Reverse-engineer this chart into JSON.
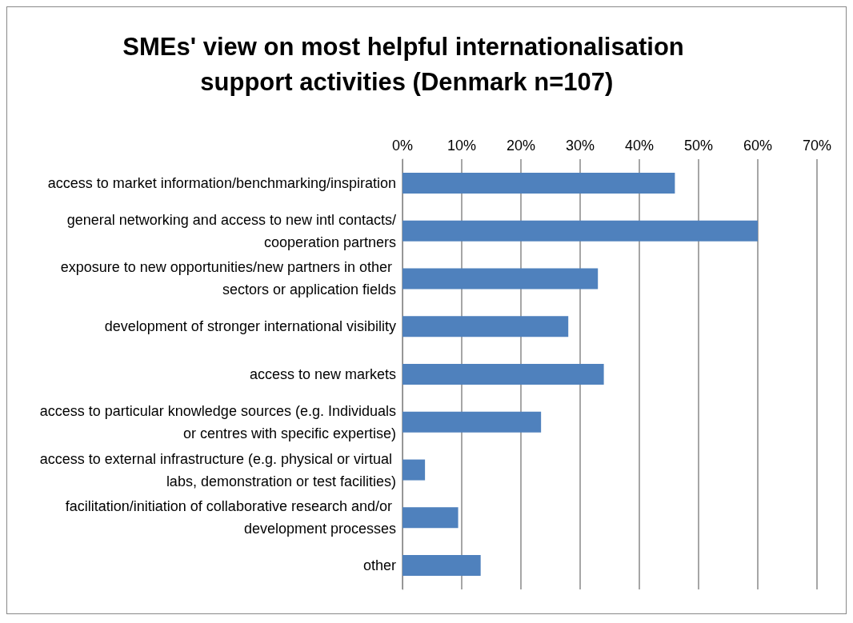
{
  "chart_data": {
    "type": "bar",
    "orientation": "horizontal",
    "title": "SMEs' view on most helpful internationalisation support activities (Denmark n=107)",
    "categories": [
      "access to market information/benchmarking/inspiration",
      "general networking and access to new intl contacts/cooperation partners",
      "exposure to new opportunities/new partners in other sectors or application fields",
      "development of stronger international visibility",
      "access to new markets",
      "access to particular knowledge sources (e.g. Individuals or centres with specific expertise)",
      "access to external infrastructure (e.g. physical or virtual labs, demonstration or test facilities)",
      "facilitation/initiation of collaborative research and/or development processes",
      "other"
    ],
    "values": [
      46,
      60,
      33,
      28,
      34,
      23.4,
      3.8,
      9.4,
      13.2
    ],
    "color": "#4f81bd",
    "xlim": [
      0,
      70
    ],
    "xticks": [
      {
        "value": 0,
        "label": "0%"
      },
      {
        "value": 10,
        "label": "10%"
      },
      {
        "value": 20,
        "label": "20%"
      },
      {
        "value": 30,
        "label": "30%"
      },
      {
        "value": 40,
        "label": "40%"
      },
      {
        "value": 50,
        "label": "50%"
      },
      {
        "value": 60,
        "label": "60%"
      },
      {
        "value": 70,
        "label": "70%"
      }
    ],
    "grid": "x"
  }
}
